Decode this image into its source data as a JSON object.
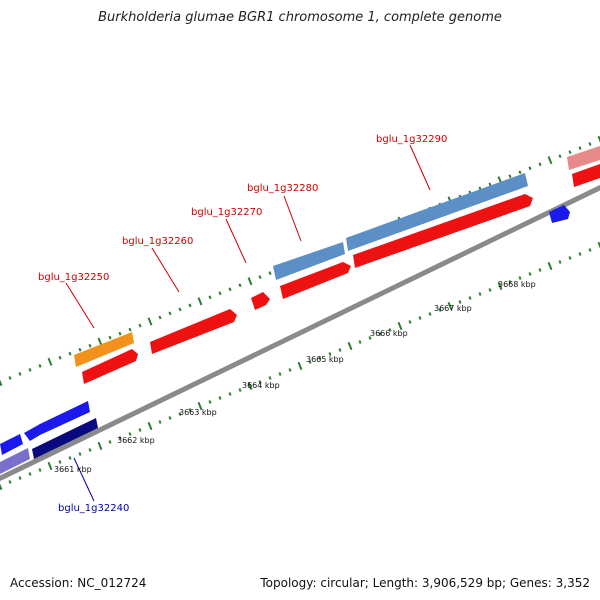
{
  "title": "Burkholderia glumae BGR1 chromosome 1, complete genome",
  "footer": {
    "accession": "Accession: NC_012724",
    "topology": "Topology: circular; Length: 3,906,529 bp; Genes: 3,352"
  },
  "colors": {
    "backbone": "#8a8a8a",
    "tick": "#2e7d2e",
    "label_forward": "#cc0000",
    "label_reverse": "#0000aa",
    "cds_red": "#ee1111",
    "cds_orange": "#f2921a",
    "cds_steelblue": "#5b8fc6",
    "cds_pink": "#e88a8a",
    "cds_blue": "#1a1aee",
    "cds_navy": "#0a0a80",
    "cds_lavender": "#7a70cc"
  },
  "kbp_labels": [
    "3661 kbp",
    "3662 kbp",
    "3663 kbp",
    "3664 kbp",
    "3665 kbp",
    "3666 kbp",
    "3667 kbp",
    "3668 kbp"
  ],
  "gene_labels": [
    {
      "text": "bglu_1g32240",
      "strand": "reverse"
    },
    {
      "text": "bglu_1g32250",
      "strand": "forward"
    },
    {
      "text": "bglu_1g32260",
      "strand": "forward"
    },
    {
      "text": "bglu_1g32270",
      "strand": "forward"
    },
    {
      "text": "bglu_1g32280",
      "strand": "forward"
    },
    {
      "text": "bglu_1g32290",
      "strand": "forward"
    }
  ]
}
